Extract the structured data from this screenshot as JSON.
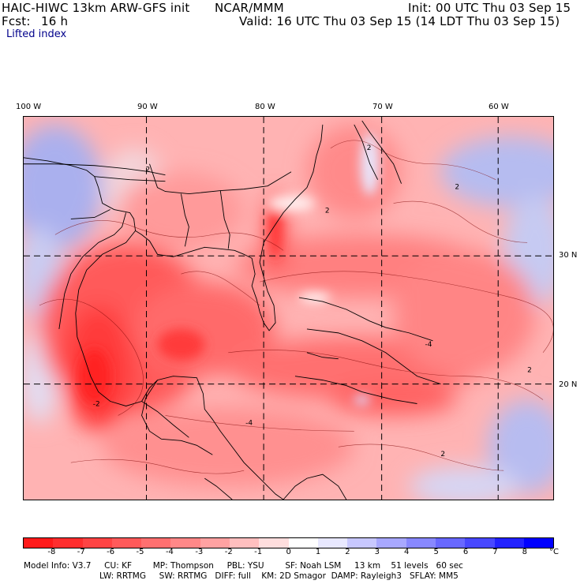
{
  "header": {
    "model": "HAIC-HIWC 13km ARW-GFS init",
    "org": "NCAR/MMM",
    "init": "Init: 00 UTC Thu 03 Sep 15",
    "fcst_label": "Fcst:",
    "fcst_value": "16 h",
    "valid": "Valid: 16 UTC Thu 03 Sep 15 (14 LDT Thu 03 Sep 15)",
    "field": "Lifted index"
  },
  "map": {
    "lon_labels": [
      "100 W",
      "90 W",
      "80 W",
      "70 W",
      "60 W"
    ],
    "lat_labels": [
      "30 N",
      "20 N"
    ],
    "contour_labels": [
      "2",
      "2",
      "2",
      "2",
      "2",
      "2",
      "-4",
      "-4",
      "-2"
    ]
  },
  "colorbar": {
    "ticks": [
      "-8",
      "-7",
      "-6",
      "-5",
      "-4",
      "-3",
      "-2",
      "-1",
      "0",
      "1",
      "2",
      "3",
      "4",
      "5",
      "6",
      "7",
      "8"
    ],
    "unit": "°C",
    "colors": [
      "#ff1a1a",
      "#ff2e2e",
      "#ff4444",
      "#ff5a5a",
      "#ff7070",
      "#ff8888",
      "#ffa2a2",
      "#ffbfbf",
      "#ffdede",
      "#ffffff",
      "#e8e8ff",
      "#c8c8ff",
      "#a8a8ff",
      "#8888ff",
      "#6868ff",
      "#4848ff",
      "#2222ff",
      "#0000ff"
    ]
  },
  "info": {
    "line1": "Model Info: V3.7     CU: KF        MP: Thompson     PBL: YSU        SF: Noah LSM     13 km    51 levels   60 sec",
    "line2": "LW: RRTMG     SW: RRTMG   DIFF: full    KM: 2D Smagor  DAMP: Rayleigh3   SFLAY: MM5"
  }
}
